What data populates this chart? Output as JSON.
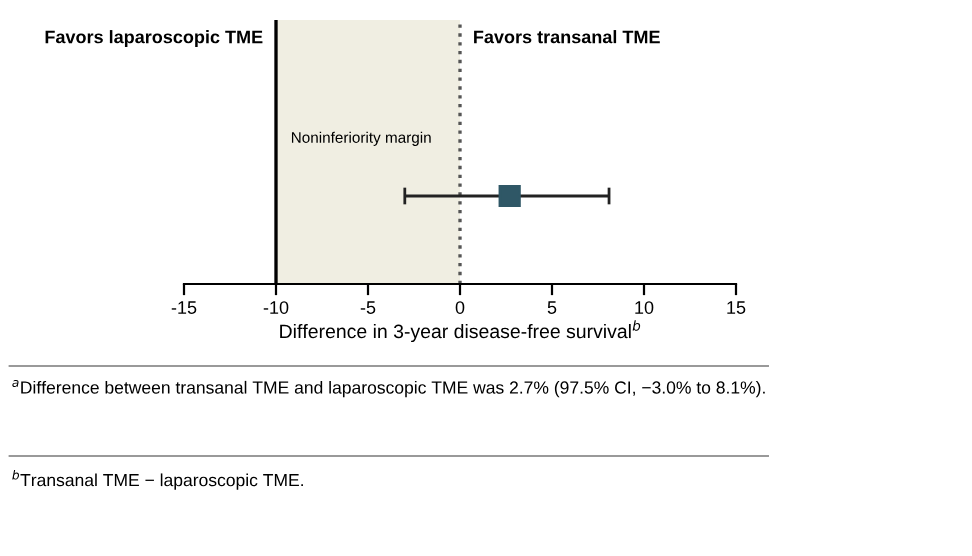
{
  "chart_data": {
    "type": "scatter",
    "orientation": "horizontal",
    "categories": [
      null
    ],
    "series": [
      {
        "color": "#2f5766",
        "values": [
          2.7
        ],
        "errors": [
          [
            -3.0,
            8.1
          ]
        ]
      }
    ],
    "marker": "square",
    "xlim": [
      -15,
      15
    ],
    "xticks": [
      -15,
      -10,
      -5,
      0,
      5,
      10,
      15
    ],
    "xlabel": "Difference in 3-year disease-free survival$^{b}$",
    "ref_lines": [
      {
        "axis": "x",
        "value": -10,
        "label": "Noninferiority margin",
        "color": "#000000",
        "line_style": "solid"
      },
      {
        "axis": "x",
        "value": 0,
        "color": "#555555",
        "line_style": "dotted"
      }
    ],
    "bands": [
      {
        "axis": "x",
        "from": -10,
        "to": 0,
        "color": "#f0eee2"
      }
    ],
    "annotations": [
      "Favors laparoscopic TME",
      "Favors transanal TME",
      "$^{a}$Difference between transanal TME and laparoscopic TME was 2.7% (97.5% CI, −3.0% to 8.1%).",
      "$^{b}$Transanal TME − laparoscopic TME."
    ],
    "grid": false,
    "legend": false
  }
}
